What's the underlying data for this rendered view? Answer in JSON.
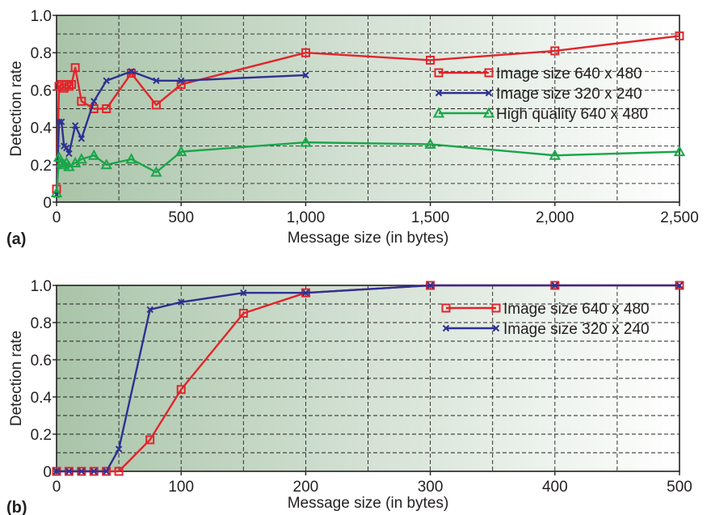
{
  "colors": {
    "red": "#e3242b",
    "blue": "#2e3192",
    "green": "#1aa64a",
    "bg_dark": "#a9c4a9",
    "bg_light": "#ffffff"
  },
  "chart_data": [
    {
      "type": "line",
      "panel_label": "(a)",
      "xlabel": "Message size (in bytes)",
      "ylabel": "Detection rate",
      "xlim": [
        0,
        2500
      ],
      "ylim": [
        0,
        1.0
      ],
      "xticks": [
        0,
        500,
        1000,
        1500,
        2000,
        2500
      ],
      "xtick_labels": [
        "0",
        "500",
        "1,000",
        "1,500",
        "2,000",
        "2,500"
      ],
      "yticks": [
        0,
        0.2,
        0.4,
        0.6,
        0.8,
        1.0
      ],
      "ytick_labels": [
        "0",
        "0.2",
        "0.4",
        "0.6",
        "0.8",
        "1.0"
      ],
      "minor_xticks": [
        250,
        750,
        1250,
        1750,
        2250
      ],
      "minor_yticks": [
        0.1,
        0.3,
        0.5,
        0.7,
        0.9
      ],
      "grid": true,
      "legend_position": "right",
      "series": [
        {
          "name": "Image size 640 x 480",
          "color": "red",
          "marker": "square",
          "points": [
            [
              0,
              0.07
            ],
            [
              10,
              0.62
            ],
            [
              20,
              0.63
            ],
            [
              30,
              0.61
            ],
            [
              40,
              0.63
            ],
            [
              50,
              0.62
            ],
            [
              60,
              0.63
            ],
            [
              75,
              0.72
            ],
            [
              100,
              0.54
            ],
            [
              150,
              0.5
            ],
            [
              200,
              0.5
            ],
            [
              300,
              0.69
            ],
            [
              400,
              0.52
            ],
            [
              500,
              0.63
            ],
            [
              1000,
              0.8
            ],
            [
              1500,
              0.76
            ],
            [
              2000,
              0.81
            ],
            [
              2500,
              0.89
            ]
          ]
        },
        {
          "name": "Image size 320 x 240",
          "color": "blue",
          "marker": "x",
          "points": [
            [
              0,
              0.04
            ],
            [
              10,
              0.43
            ],
            [
              20,
              0.43
            ],
            [
              30,
              0.3
            ],
            [
              40,
              0.29
            ],
            [
              50,
              0.26
            ],
            [
              75,
              0.41
            ],
            [
              100,
              0.34
            ],
            [
              150,
              0.54
            ],
            [
              200,
              0.65
            ],
            [
              300,
              0.7
            ],
            [
              400,
              0.65
            ],
            [
              500,
              0.65
            ],
            [
              1000,
              0.68
            ]
          ]
        },
        {
          "name": "High quality 640 x 480",
          "color": "green",
          "marker": "triangle",
          "points": [
            [
              0,
              0.05
            ],
            [
              10,
              0.24
            ],
            [
              20,
              0.21
            ],
            [
              30,
              0.2
            ],
            [
              40,
              0.21
            ],
            [
              50,
              0.19
            ],
            [
              75,
              0.21
            ],
            [
              100,
              0.23
            ],
            [
              150,
              0.25
            ],
            [
              200,
              0.2
            ],
            [
              300,
              0.23
            ],
            [
              400,
              0.16
            ],
            [
              500,
              0.27
            ],
            [
              1000,
              0.32
            ],
            [
              1500,
              0.31
            ],
            [
              2000,
              0.25
            ],
            [
              2500,
              0.27
            ]
          ]
        }
      ]
    },
    {
      "type": "line",
      "panel_label": "(b)",
      "xlabel": "Message size (in bytes)",
      "ylabel": "Detection rate",
      "xlim": [
        0,
        500
      ],
      "ylim": [
        0,
        1.0
      ],
      "xticks": [
        0,
        100,
        200,
        300,
        400,
        500
      ],
      "xtick_labels": [
        "0",
        "100",
        "200",
        "300",
        "400",
        "500"
      ],
      "yticks": [
        0,
        0.2,
        0.4,
        0.6,
        0.8,
        1.0
      ],
      "ytick_labels": [
        "0",
        "0.2",
        "0.4",
        "0.6",
        "0.8",
        "1.0"
      ],
      "minor_xticks": [
        50,
        150,
        250,
        350,
        450
      ],
      "minor_yticks": [
        0.1,
        0.3,
        0.5,
        0.7,
        0.9
      ],
      "grid": true,
      "legend_position": "top-right",
      "series": [
        {
          "name": "Image size 640 x 480",
          "color": "red",
          "marker": "square",
          "points": [
            [
              0,
              0
            ],
            [
              10,
              0
            ],
            [
              20,
              0
            ],
            [
              30,
              0
            ],
            [
              40,
              0
            ],
            [
              50,
              0
            ],
            [
              75,
              0.17
            ],
            [
              100,
              0.44
            ],
            [
              150,
              0.85
            ],
            [
              200,
              0.96
            ],
            [
              300,
              1.0
            ],
            [
              400,
              1.0
            ],
            [
              500,
              1.0
            ]
          ]
        },
        {
          "name": "Image size 320 x 240",
          "color": "blue",
          "marker": "x",
          "points": [
            [
              0,
              0
            ],
            [
              10,
              0
            ],
            [
              20,
              0
            ],
            [
              30,
              0
            ],
            [
              40,
              0
            ],
            [
              50,
              0.12
            ],
            [
              75,
              0.87
            ],
            [
              100,
              0.91
            ],
            [
              150,
              0.96
            ],
            [
              200,
              0.96
            ],
            [
              300,
              1.0
            ],
            [
              400,
              1.0
            ],
            [
              500,
              1.0
            ]
          ]
        }
      ]
    }
  ]
}
